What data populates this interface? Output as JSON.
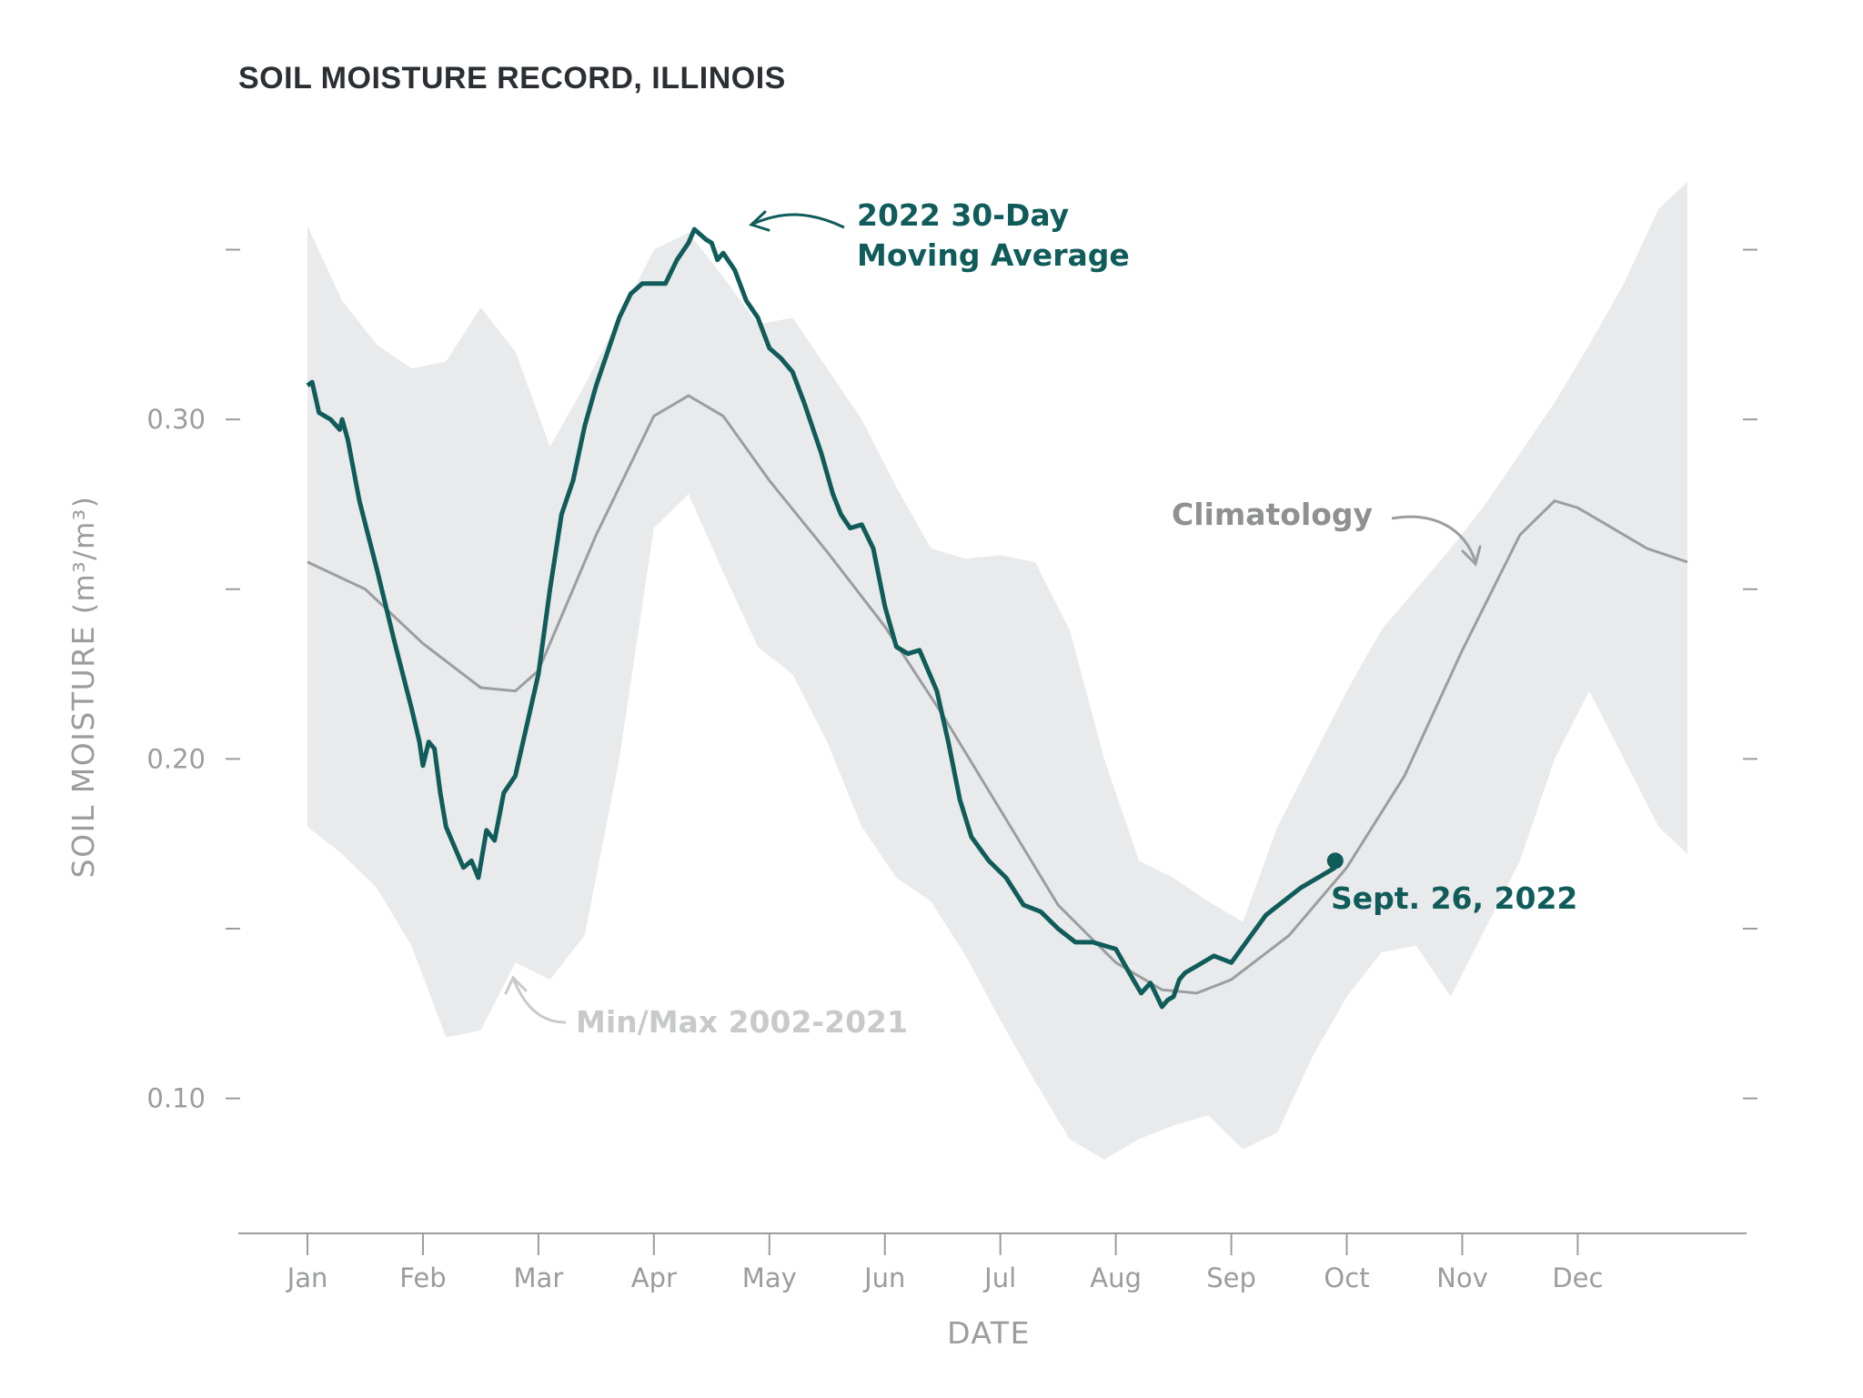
{
  "chart_data": {
    "type": "line",
    "title": "SOIL MOISTURE RECORD, ILLINOIS",
    "xlabel": "DATE",
    "ylabel_main": "SOIL MOISTURE ",
    "ylabel_unit": "(m³/m³)",
    "ylim": [
      0.064,
      0.378
    ],
    "xlim": [
      0,
      11.95
    ],
    "y_ticks": [
      {
        "value": 0.1,
        "label": "0.10"
      },
      {
        "value": 0.15,
        "label": ""
      },
      {
        "value": 0.2,
        "label": "0.20"
      },
      {
        "value": 0.25,
        "label": ""
      },
      {
        "value": 0.3,
        "label": "0.30"
      },
      {
        "value": 0.35,
        "label": ""
      }
    ],
    "x_ticks": [
      {
        "value": 0,
        "label": "Jan"
      },
      {
        "value": 1,
        "label": "Feb"
      },
      {
        "value": 2,
        "label": "Mar"
      },
      {
        "value": 3,
        "label": "Apr"
      },
      {
        "value": 4,
        "label": "May"
      },
      {
        "value": 5,
        "label": "Jun"
      },
      {
        "value": 6,
        "label": "Jul"
      },
      {
        "value": 7,
        "label": "Aug"
      },
      {
        "value": 8,
        "label": "Sep"
      },
      {
        "value": 9,
        "label": "Oct"
      },
      {
        "value": 10,
        "label": "Nov"
      },
      {
        "value": 11,
        "label": "Dec"
      }
    ],
    "band": {
      "name": "Min/Max 2002-2021",
      "x": [
        0,
        0.3,
        0.6,
        0.9,
        1.2,
        1.5,
        1.8,
        2.1,
        2.4,
        2.7,
        3.0,
        3.3,
        3.6,
        3.9,
        4.2,
        4.5,
        4.8,
        5.1,
        5.4,
        5.7,
        6.0,
        6.3,
        6.6,
        6.9,
        7.2,
        7.5,
        7.8,
        8.1,
        8.4,
        8.7,
        9.0,
        9.3,
        9.6,
        9.9,
        10.2,
        10.5,
        10.8,
        11.1,
        11.4,
        11.7,
        11.95
      ],
      "upper": [
        0.357,
        0.335,
        0.322,
        0.315,
        0.317,
        0.333,
        0.32,
        0.292,
        0.31,
        0.33,
        0.35,
        0.355,
        0.342,
        0.328,
        0.33,
        0.315,
        0.3,
        0.28,
        0.262,
        0.259,
        0.26,
        0.258,
        0.238,
        0.2,
        0.17,
        0.165,
        0.158,
        0.152,
        0.18,
        0.2,
        0.22,
        0.238,
        0.25,
        0.262,
        0.275,
        0.29,
        0.305,
        0.322,
        0.34,
        0.362,
        0.37
      ],
      "lower": [
        0.18,
        0.172,
        0.162,
        0.145,
        0.118,
        0.12,
        0.14,
        0.135,
        0.148,
        0.2,
        0.268,
        0.278,
        0.255,
        0.233,
        0.225,
        0.205,
        0.18,
        0.165,
        0.158,
        0.142,
        0.123,
        0.105,
        0.088,
        0.082,
        0.088,
        0.092,
        0.095,
        0.085,
        0.09,
        0.112,
        0.13,
        0.143,
        0.145,
        0.13,
        0.15,
        0.17,
        0.2,
        0.22,
        0.2,
        0.18,
        0.172
      ]
    },
    "series": [
      {
        "name": "Climatology",
        "color": "#9b9d9f",
        "x": [
          0,
          0.5,
          1.0,
          1.5,
          1.8,
          2.0,
          2.5,
          3.0,
          3.3,
          3.6,
          4.0,
          4.5,
          5.0,
          5.5,
          6.0,
          6.5,
          7.0,
          7.4,
          7.7,
          8.0,
          8.5,
          9.0,
          9.5,
          10.0,
          10.5,
          10.8,
          11.0,
          11.3,
          11.6,
          11.95
        ],
        "values": [
          0.258,
          0.25,
          0.234,
          0.221,
          0.22,
          0.226,
          0.266,
          0.301,
          0.307,
          0.301,
          0.282,
          0.261,
          0.239,
          0.213,
          0.185,
          0.157,
          0.14,
          0.132,
          0.131,
          0.135,
          0.148,
          0.168,
          0.195,
          0.232,
          0.266,
          0.276,
          0.274,
          0.268,
          0.262,
          0.258
        ]
      },
      {
        "name": "2022 30-Day Moving Average",
        "color": "#0f5c5a",
        "x": [
          0,
          0.04,
          0.1,
          0.2,
          0.28,
          0.3,
          0.35,
          0.45,
          0.6,
          0.75,
          0.9,
          0.97,
          1.0,
          1.05,
          1.1,
          1.15,
          1.2,
          1.3,
          1.35,
          1.42,
          1.48,
          1.55,
          1.62,
          1.7,
          1.8,
          1.9,
          2.0,
          2.1,
          2.2,
          2.3,
          2.4,
          2.5,
          2.6,
          2.7,
          2.8,
          2.9,
          3.0,
          3.1,
          3.2,
          3.3,
          3.35,
          3.45,
          3.5,
          3.55,
          3.6,
          3.7,
          3.8,
          3.9,
          4.0,
          4.1,
          4.2,
          4.3,
          4.45,
          4.55,
          4.62,
          4.7,
          4.8,
          4.9,
          5.0,
          5.1,
          5.2,
          5.3,
          5.45,
          5.55,
          5.65,
          5.75,
          5.9,
          6.05,
          6.2,
          6.35,
          6.5,
          6.65,
          6.8,
          7.0,
          7.15,
          7.22,
          7.3,
          7.4,
          7.45,
          7.5,
          7.55,
          7.6,
          7.7,
          7.85,
          8.0,
          8.15,
          8.3,
          8.45,
          8.6,
          8.75,
          8.9
        ],
        "values": [
          0.31,
          0.311,
          0.302,
          0.3,
          0.297,
          0.3,
          0.294,
          0.276,
          0.256,
          0.235,
          0.215,
          0.205,
          0.198,
          0.205,
          0.203,
          0.19,
          0.18,
          0.172,
          0.168,
          0.17,
          0.165,
          0.179,
          0.176,
          0.19,
          0.195,
          0.21,
          0.225,
          0.25,
          0.272,
          0.282,
          0.298,
          0.31,
          0.32,
          0.33,
          0.337,
          0.34,
          0.34,
          0.34,
          0.347,
          0.352,
          0.356,
          0.353,
          0.352,
          0.347,
          0.349,
          0.344,
          0.335,
          0.33,
          0.321,
          0.318,
          0.314,
          0.305,
          0.29,
          0.278,
          0.272,
          0.268,
          0.269,
          0.262,
          0.245,
          0.233,
          0.231,
          0.232,
          0.22,
          0.205,
          0.188,
          0.177,
          0.17,
          0.165,
          0.157,
          0.155,
          0.15,
          0.146,
          0.146,
          0.144,
          0.135,
          0.131,
          0.134,
          0.127,
          0.129,
          0.13,
          0.135,
          0.137,
          0.139,
          0.142,
          0.14,
          0.147,
          0.154,
          0.158,
          0.162,
          0.165,
          0.168
        ]
      }
    ],
    "end_point": {
      "x": 8.9,
      "y": 0.17,
      "label": "Sept. 26, 2022"
    },
    "annotations": {
      "moving_average_line1": "2022 30-Day",
      "moving_average_line2": "Moving Average",
      "climatology": "Climatology",
      "minmax": "Min/Max 2002-2021"
    }
  }
}
